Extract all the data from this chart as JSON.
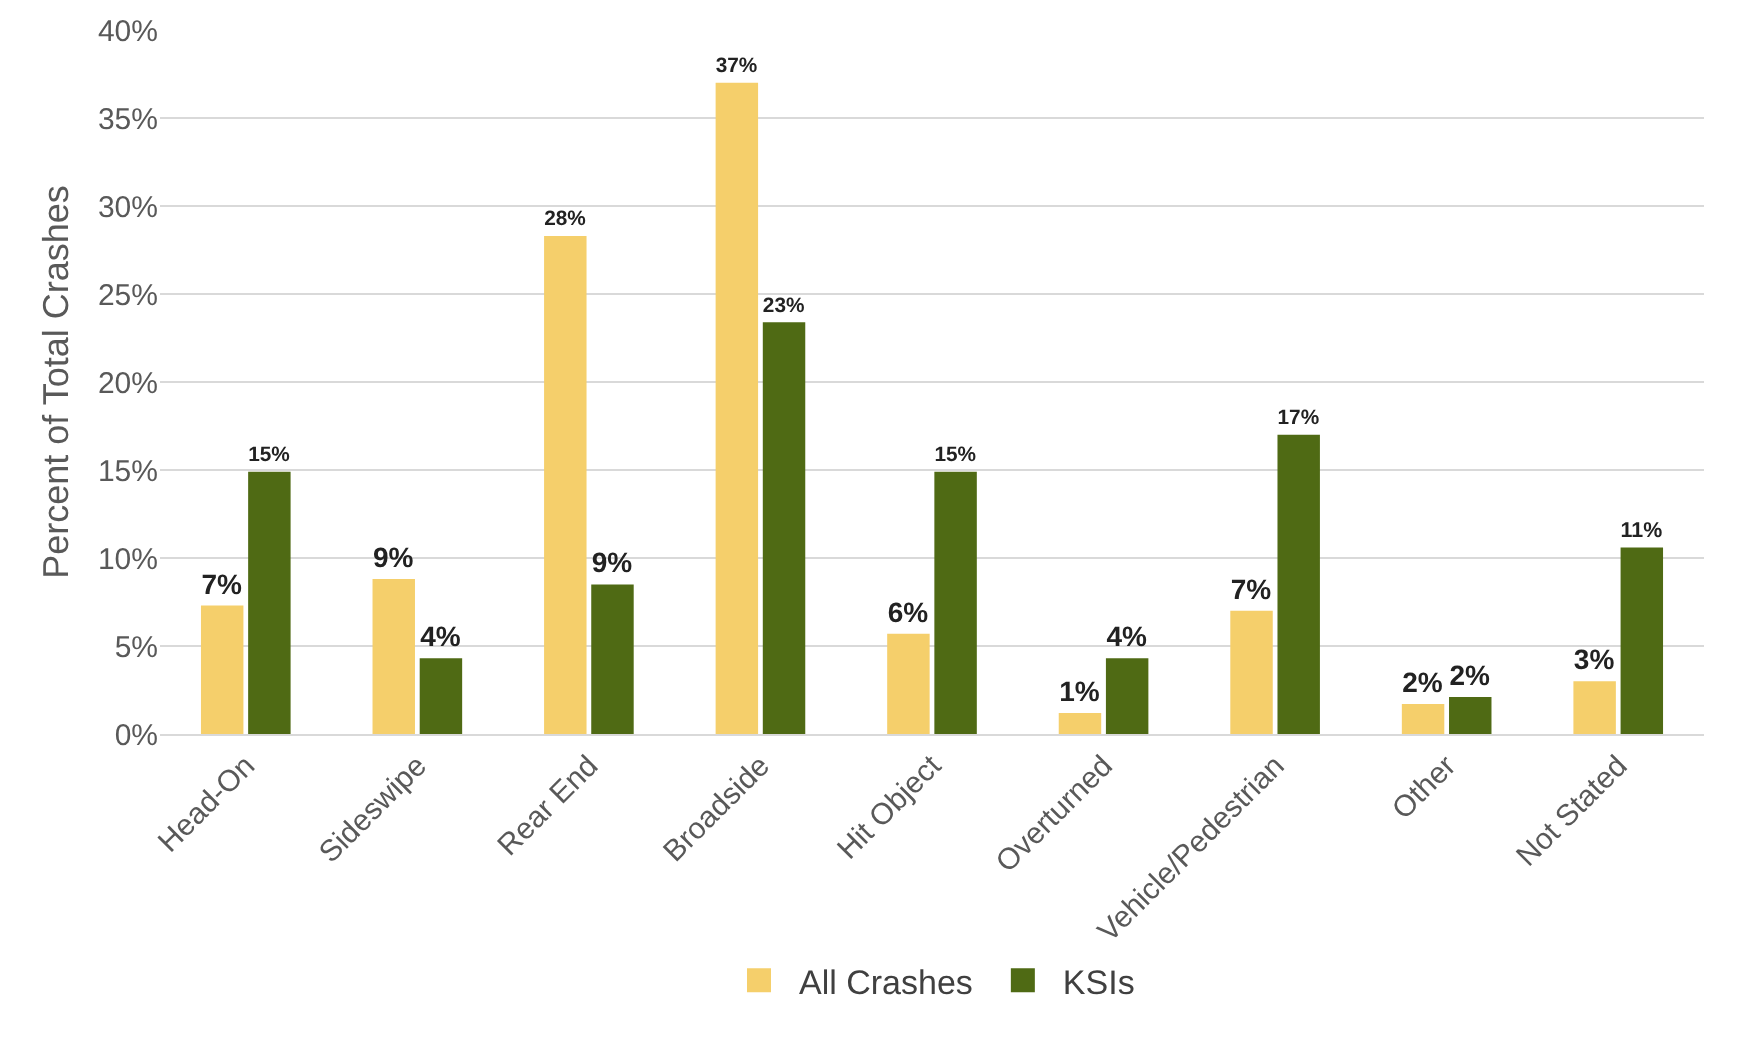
{
  "chart_data": {
    "type": "bar",
    "ylabel": "Percent of Total Crashes",
    "categories": [
      "Head-On",
      "Sideswipe",
      "Rear End",
      "Broadside",
      "Hit Object",
      "Overturned",
      "Vehicle/Pedestrian",
      "Other",
      "Not Stated"
    ],
    "series": [
      {
        "name": "All Crashes",
        "color": "#f5cf6b",
        "values": [
          7.3,
          8.8,
          28.3,
          37,
          5.7,
          1.2,
          7,
          1.7,
          3
        ],
        "value_labels": [
          "7%",
          "9%",
          "28%",
          "37%",
          "6%",
          "1%",
          "7%",
          "2%",
          "3%"
        ]
      },
      {
        "name": "KSIs",
        "color": "#4f6a14",
        "values": [
          14.9,
          4.3,
          8.5,
          23.4,
          14.9,
          4.3,
          17,
          2.1,
          10.6
        ],
        "value_labels": [
          "15%",
          "4%",
          "9%",
          "23%",
          "15%",
          "4%",
          "17%",
          "2%",
          "11%"
        ]
      }
    ],
    "ylim": [
      0,
      40
    ],
    "yticks": [
      {
        "value": 0,
        "label": "0%"
      },
      {
        "value": 5,
        "label": "5%"
      },
      {
        "value": 10,
        "label": "10%"
      },
      {
        "value": 15,
        "label": "15%"
      },
      {
        "value": 20,
        "label": "20%"
      },
      {
        "value": 25,
        "label": "25%"
      },
      {
        "value": 30,
        "label": "30%"
      },
      {
        "value": 35,
        "label": "35%"
      },
      {
        "value": 40,
        "label": "40%"
      }
    ],
    "grid": "y",
    "legend": "bottom"
  }
}
